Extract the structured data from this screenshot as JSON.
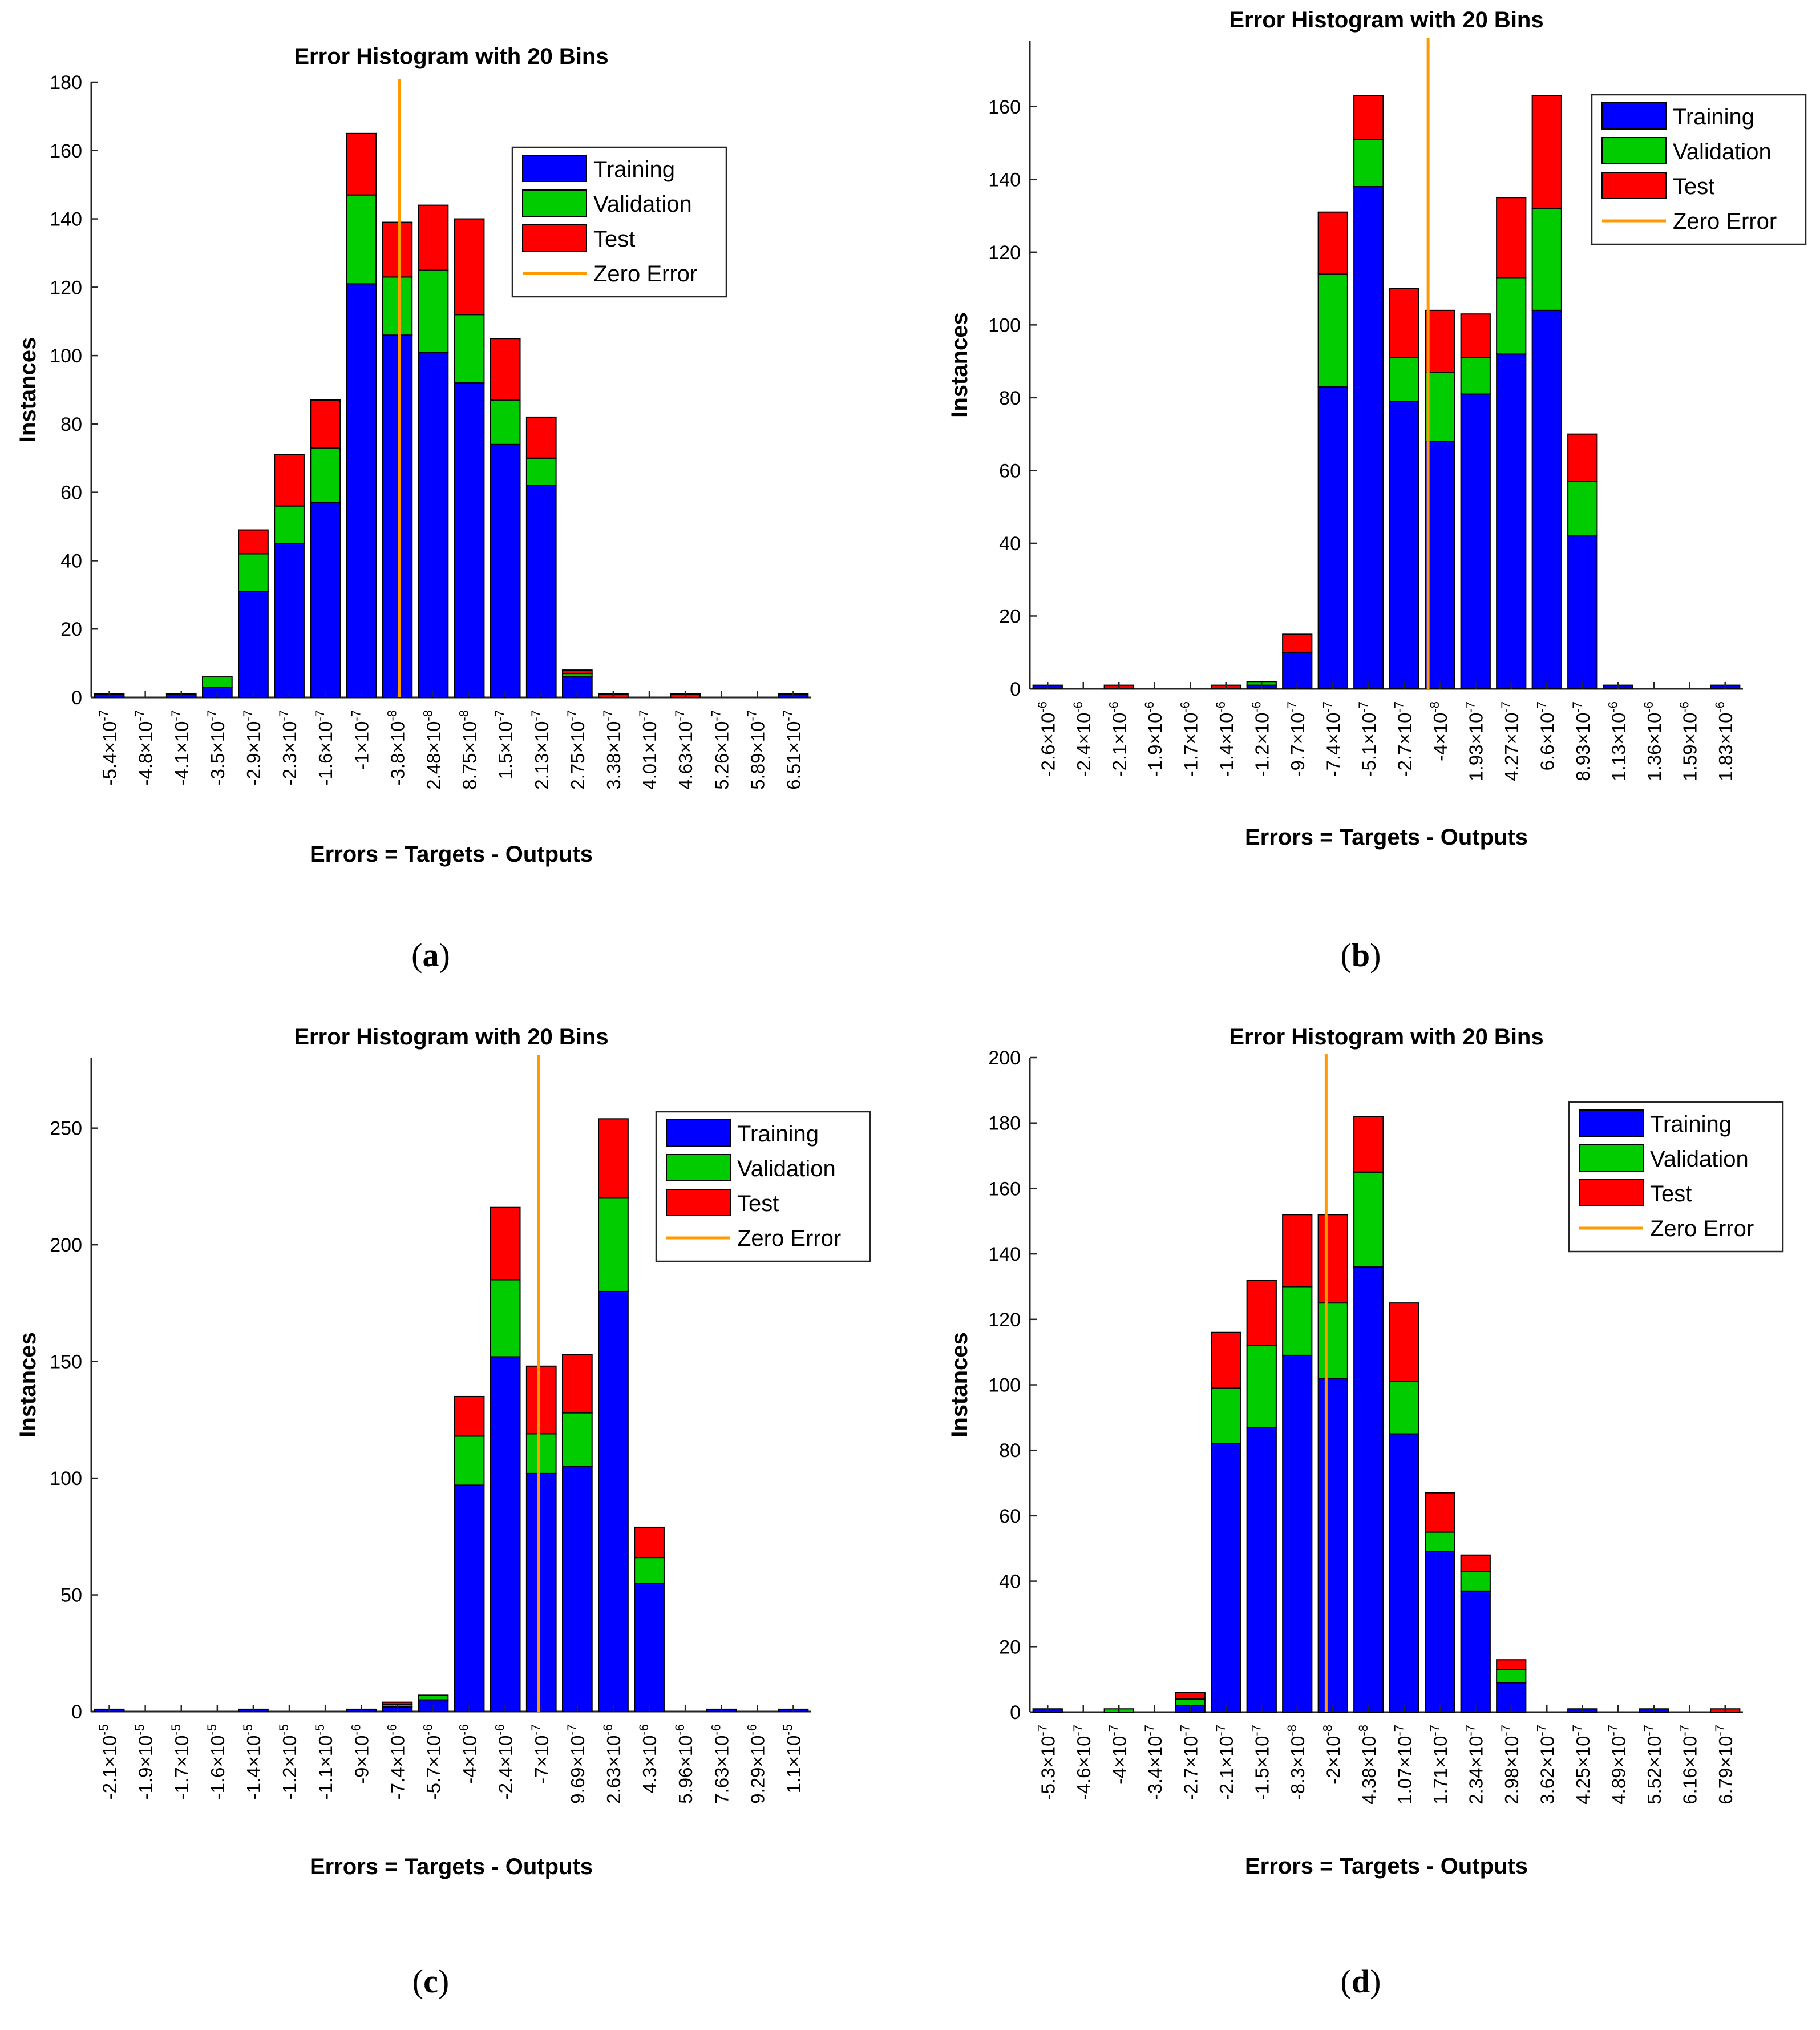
{
  "colors": {
    "training": "#0000ff",
    "validation": "#00cc00",
    "test": "#ff0000",
    "zero_error": "#ff9900",
    "axis": "#262626"
  },
  "chart_data": [
    {
      "type": "bar",
      "stacked": true,
      "panel_label": "a",
      "title": "Error Histogram with 20 Bins",
      "xlabel": "Errors = Targets - Outputs",
      "ylabel": "Instances",
      "ylim": [
        0,
        180
      ],
      "yticks": [
        0,
        20,
        40,
        60,
        80,
        100,
        120,
        140,
        160,
        180
      ],
      "categories": [
        "-5.4×10⁻⁷",
        "-4.8×10⁻⁷",
        "-4.1×10⁻⁷",
        "-3.5×10⁻⁷",
        "-2.9×10⁻⁷",
        "-2.3×10⁻⁷",
        "-1.6×10⁻⁷",
        "-1×10⁻⁷",
        "-3.8×10⁻⁸",
        "2.48×10⁻⁸",
        "8.75×10⁻⁸",
        "1.5×10⁻⁷",
        "2.13×10⁻⁷",
        "2.75×10⁻⁷",
        "3.38×10⁻⁷",
        "4.01×10⁻⁷",
        "4.63×10⁻⁷",
        "5.26×10⁻⁷",
        "5.89×10⁻⁷",
        "6.51×10⁻⁷"
      ],
      "series": [
        {
          "name": "Training",
          "values": [
            1,
            0,
            1,
            3,
            31,
            45,
            57,
            121,
            106,
            101,
            92,
            74,
            62,
            6,
            0,
            0,
            0,
            0,
            0,
            1
          ]
        },
        {
          "name": "Validation",
          "values": [
            0,
            0,
            0,
            3,
            11,
            11,
            16,
            26,
            17,
            24,
            20,
            13,
            8,
            1,
            0,
            0,
            0,
            0,
            0,
            0
          ]
        },
        {
          "name": "Test",
          "values": [
            0,
            0,
            0,
            0,
            7,
            15,
            14,
            18,
            16,
            19,
            28,
            18,
            12,
            1,
            1,
            0,
            1,
            0,
            0,
            0
          ]
        }
      ],
      "zero_error_at": 8.55,
      "legend": {
        "position": "top-right",
        "entries": [
          "Training",
          "Validation",
          "Test",
          "Zero Error"
        ]
      }
    },
    {
      "type": "bar",
      "stacked": true,
      "panel_label": "b",
      "title": "Error Histogram with 20 Bins",
      "xlabel": "Errors = Targets - Outputs",
      "ylabel": "Instances",
      "ylim": [
        0,
        178
      ],
      "yticks": [
        0,
        20,
        40,
        60,
        80,
        100,
        120,
        140,
        160
      ],
      "categories": [
        "-2.6×10⁻⁶",
        "-2.4×10⁻⁶",
        "-2.1×10⁻⁶",
        "-1.9×10⁻⁶",
        "-1.7×10⁻⁶",
        "-1.4×10⁻⁶",
        "-1.2×10⁻⁶",
        "-9.7×10⁻⁷",
        "-7.4×10⁻⁷",
        "-5.1×10⁻⁷",
        "-2.7×10⁻⁷",
        "-4×10⁻⁸",
        "1.93×10⁻⁷",
        "4.27×10⁻⁷",
        "6.6×10⁻⁷",
        "8.93×10⁻⁷",
        "1.13×10⁻⁶",
        "1.36×10⁻⁶",
        "1.59×10⁻⁶",
        "1.83×10⁻⁶"
      ],
      "series": [
        {
          "name": "Training",
          "values": [
            1,
            0,
            0,
            0,
            0,
            0,
            1,
            10,
            83,
            138,
            79,
            68,
            81,
            92,
            104,
            42,
            1,
            0,
            0,
            1
          ]
        },
        {
          "name": "Validation",
          "values": [
            0,
            0,
            0,
            0,
            0,
            0,
            1,
            0,
            31,
            13,
            12,
            19,
            10,
            21,
            28,
            15,
            0,
            0,
            0,
            0
          ]
        },
        {
          "name": "Test",
          "values": [
            0,
            0,
            1,
            0,
            0,
            1,
            0,
            5,
            17,
            12,
            19,
            17,
            12,
            22,
            31,
            13,
            0,
            0,
            0,
            0
          ]
        }
      ],
      "zero_error_at": 11.17,
      "legend": {
        "position": "top-right",
        "entries": [
          "Training",
          "Validation",
          "Test",
          "Zero Error"
        ]
      }
    },
    {
      "type": "bar",
      "stacked": true,
      "panel_label": "c",
      "title": "Error Histogram with 20 Bins",
      "xlabel": "Errors = Targets - Outputs",
      "ylabel": "Instances",
      "ylim": [
        0,
        280
      ],
      "yticks": [
        0,
        50,
        100,
        150,
        200,
        250
      ],
      "categories": [
        "-2.1×10⁻⁵",
        "-1.9×10⁻⁵",
        "-1.7×10⁻⁵",
        "-1.6×10⁻⁵",
        "-1.4×10⁻⁵",
        "-1.2×10⁻⁵",
        "-1.1×10⁻⁵",
        "-9×10⁻⁶",
        "-7.4×10⁻⁶",
        "-5.7×10⁻⁶",
        "-4×10⁻⁶",
        "-2.4×10⁻⁶",
        "-7×10⁻⁷",
        "9.69×10⁻⁷",
        "2.63×10⁻⁶",
        "4.3×10⁻⁶",
        "5.96×10⁻⁶",
        "7.63×10⁻⁶",
        "9.29×10⁻⁶",
        "1.1×10⁻⁵"
      ],
      "series": [
        {
          "name": "Training",
          "values": [
            1,
            0,
            0,
            0,
            1,
            0,
            0,
            1,
            2,
            5,
            97,
            152,
            102,
            105,
            180,
            55,
            0,
            1,
            0,
            1
          ]
        },
        {
          "name": "Validation",
          "values": [
            0,
            0,
            0,
            0,
            0,
            0,
            0,
            0,
            1,
            2,
            21,
            33,
            17,
            23,
            40,
            11,
            0,
            0,
            0,
            0
          ]
        },
        {
          "name": "Test",
          "values": [
            0,
            0,
            0,
            0,
            0,
            0,
            0,
            0,
            1,
            0,
            17,
            31,
            29,
            25,
            34,
            13,
            0,
            0,
            0,
            0
          ]
        }
      ],
      "zero_error_at": 12.42,
      "legend": {
        "position": "top-right",
        "entries": [
          "Training",
          "Validation",
          "Test",
          "Zero Error"
        ]
      }
    },
    {
      "type": "bar",
      "stacked": true,
      "panel_label": "d",
      "title": "Error Histogram with 20 Bins",
      "xlabel": "Errors = Targets - Outputs",
      "ylabel": "Instances",
      "ylim": [
        0,
        200
      ],
      "yticks": [
        0,
        20,
        40,
        60,
        80,
        100,
        120,
        140,
        160,
        180,
        200
      ],
      "categories": [
        "-5.3×10⁻⁷",
        "-4.6×10⁻⁷",
        "-4×10⁻⁷",
        "-3.4×10⁻⁷",
        "-2.7×10⁻⁷",
        "-2.1×10⁻⁷",
        "-1.5×10⁻⁷",
        "-8.3×10⁻⁸",
        "-2×10⁻⁸",
        "4.38×10⁻⁸",
        "1.07×10⁻⁷",
        "1.71×10⁻⁷",
        "2.34×10⁻⁷",
        "2.98×10⁻⁷",
        "3.62×10⁻⁷",
        "4.25×10⁻⁷",
        "4.89×10⁻⁷",
        "5.52×10⁻⁷",
        "6.16×10⁻⁷",
        "6.79×10⁻⁷"
      ],
      "series": [
        {
          "name": "Training",
          "values": [
            1,
            0,
            0,
            0,
            2,
            82,
            87,
            109,
            102,
            136,
            85,
            49,
            37,
            9,
            0,
            1,
            0,
            1,
            0,
            0
          ]
        },
        {
          "name": "Validation",
          "values": [
            0,
            0,
            1,
            0,
            2,
            17,
            25,
            21,
            23,
            29,
            16,
            6,
            6,
            4,
            0,
            0,
            0,
            0,
            0,
            0
          ]
        },
        {
          "name": "Test",
          "values": [
            0,
            0,
            0,
            0,
            2,
            17,
            20,
            22,
            27,
            17,
            24,
            12,
            5,
            3,
            0,
            0,
            0,
            0,
            0,
            1
          ]
        }
      ],
      "zero_error_at": 8.31,
      "legend": {
        "position": "top-right",
        "entries": [
          "Training",
          "Validation",
          "Test",
          "Zero Error"
        ]
      }
    }
  ]
}
